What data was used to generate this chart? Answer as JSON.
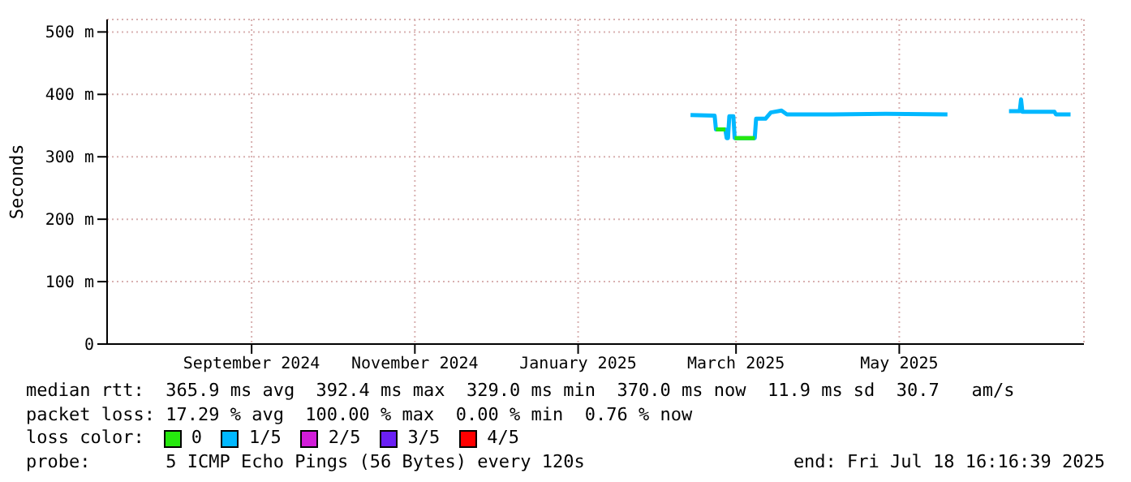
{
  "chart_data": {
    "type": "line",
    "ylabel": "Seconds",
    "legend_title": "loss color:",
    "legend": "bottom",
    "grid": true,
    "x": [
      "2025-02-26",
      "2025-03-07",
      "2025-03-07T12:00",
      "2025-03-11",
      "2025-03-11T12:00",
      "2025-03-12",
      "2025-03-12T12:00",
      "2025-03-14",
      "2025-03-14T12:00",
      "2025-03-22",
      "2025-03-22T12:00",
      "2025-03-26",
      "2025-03-28",
      "2025-04-01",
      "2025-04-03",
      "2025-04-20",
      "2025-05-10",
      "2025-06-02",
      "2025-06-13",
      "2025-06-25",
      "2025-06-29",
      "2025-06-29T12:00",
      "2025-06-30",
      "2025-07-12",
      "2025-07-12T12:00",
      "2025-07-18"
    ],
    "series": [
      {
        "name": "0",
        "color": "#26e80e",
        "values": [
          null,
          null,
          344,
          344,
          null,
          null,
          null,
          null,
          330,
          330,
          null,
          null,
          null,
          null,
          null,
          null,
          null,
          null,
          null,
          null,
          null,
          null,
          null,
          null,
          null,
          null
        ]
      },
      {
        "name": "1/5",
        "color": "#00b8ff",
        "values": [
          367,
          366,
          344,
          344,
          330,
          330,
          365,
          365,
          330,
          330,
          361,
          361,
          371,
          374,
          368,
          368,
          369,
          368,
          null,
          373,
          373,
          392,
          372,
          372,
          368,
          368
        ]
      },
      {
        "name": "2/5",
        "color": "#d21dd9",
        "values": [
          null,
          null,
          null,
          null,
          null,
          null,
          null,
          null,
          null,
          null,
          null,
          null,
          null,
          null,
          null,
          null,
          null,
          null,
          null,
          null,
          null,
          null,
          null,
          null,
          null,
          null
        ]
      },
      {
        "name": "3/5",
        "color": "#6a1ff5",
        "values": [
          null,
          null,
          null,
          null,
          null,
          null,
          null,
          null,
          null,
          null,
          null,
          null,
          null,
          null,
          null,
          null,
          null,
          null,
          null,
          null,
          null,
          null,
          null,
          null,
          null,
          null
        ]
      },
      {
        "name": "4/5",
        "color": "#ff0000",
        "values": [
          null,
          null,
          null,
          null,
          null,
          null,
          null,
          null,
          null,
          null,
          null,
          null,
          null,
          null,
          null,
          null,
          null,
          null,
          null,
          null,
          null,
          null,
          null,
          null,
          null,
          null
        ]
      }
    ],
    "xlim": [
      "2024-07-23",
      "2025-07-23"
    ],
    "xticks": [
      {
        "value": "2024-09-15",
        "label": "September 2024"
      },
      {
        "value": "2024-11-15",
        "label": "November 2024"
      },
      {
        "value": "2025-01-15",
        "label": "January 2025"
      },
      {
        "value": "2025-03-15",
        "label": "March 2025"
      },
      {
        "value": "2025-05-15",
        "label": "May 2025"
      }
    ],
    "ylim": [
      0,
      520
    ],
    "yticks": [
      0,
      {
        "value": 100,
        "label": "100 m"
      },
      {
        "value": 200,
        "label": "200 m"
      },
      {
        "value": 300,
        "label": "300 m"
      },
      {
        "value": 400,
        "label": "400 m"
      },
      {
        "value": 500,
        "label": "500 m"
      }
    ],
    "annotations": [
      "median rtt:  365.9 ms avg  392.4 ms max  329.0 ms min  370.0 ms now  11.9 ms sd  30.7   am/s",
      "packet loss: 17.29 % avg  100.00 % max  0.00 % min  0.76 % now",
      "probe:       5 ICMP Echo Pings (56 Bytes) every 120s",
      "end: Fri Jul 18 16:16:39 2025"
    ]
  }
}
